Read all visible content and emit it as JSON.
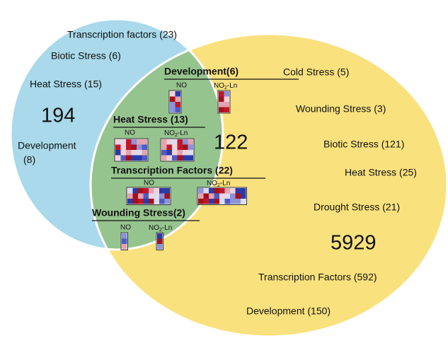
{
  "left": {
    "items": [
      "Transcription factors (23)",
      "Biotic Stress (6)",
      "Heat Stress (15)"
    ],
    "count": "194",
    "development": [
      "Development",
      "(8)"
    ]
  },
  "intersection": {
    "count": "122",
    "groups": [
      {
        "title": "Development(6)",
        "labels": [
          "NO",
          [
            "NO",
            "2",
            "-Ln"
          ]
        ]
      },
      {
        "title": "Heat Stress  (13)",
        "labels": [
          "NO",
          [
            "NO",
            "2",
            "-Ln"
          ]
        ]
      },
      {
        "title": "Transcription Factors (22)",
        "labels": [
          "NO",
          [
            "NO",
            "2",
            "-Ln"
          ]
        ]
      },
      {
        "title": "Wounding Stress(2)",
        "labels": [
          "NO",
          [
            "NO",
            "2",
            "-Ln"
          ]
        ]
      }
    ]
  },
  "right": {
    "items": [
      "Cold Stress (5)",
      "Wounding Stress (3)",
      "Biotic Stress (121)",
      "Heat Stress (25)",
      "Drought Stress (21)"
    ],
    "count": "5929",
    "items2": [
      "Transcription Factors (592)",
      "Development (150)"
    ]
  }
}
